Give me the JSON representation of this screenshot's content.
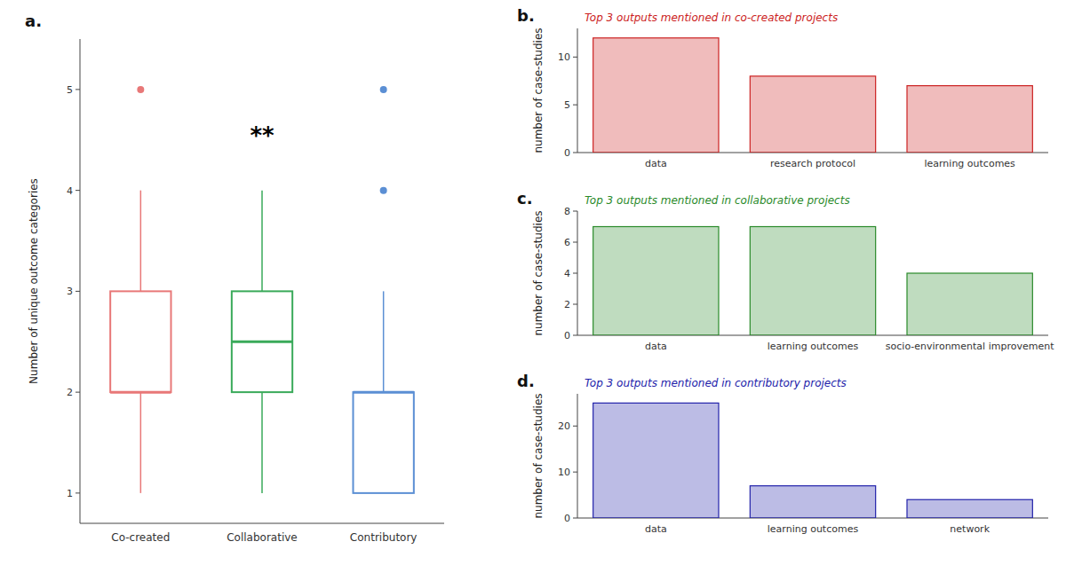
{
  "chart_data": [
    {
      "type": "box",
      "panel_label": "a.",
      "ylabel": "Number of unique outcome categories",
      "categories": [
        "Co-created",
        "Collaborative",
        "Contributory"
      ],
      "colors": [
        "#e87878",
        "#3aaa5a",
        "#5b8fd4"
      ],
      "values": [
        {
          "whisker_low": 1.0,
          "q1": 2.0,
          "median": 2.0,
          "q3": 3.0,
          "whisker_high": 4.0,
          "outliers": [
            5.0
          ]
        },
        {
          "whisker_low": 1.0,
          "q1": 2.0,
          "median": 2.5,
          "q3": 3.0,
          "whisker_high": 4.0,
          "outliers": []
        },
        {
          "whisker_low": 1.0,
          "q1": 1.0,
          "median": 2.0,
          "q3": 2.0,
          "whisker_high": 3.0,
          "outliers": [
            4.0,
            5.0
          ]
        }
      ],
      "ylim": [
        0.7,
        5.5
      ],
      "yticks": [
        1,
        2,
        3,
        4,
        5
      ],
      "annotations": [
        {
          "text": "**",
          "x": "Collaborative",
          "y": 4.55
        }
      ]
    },
    {
      "type": "bar",
      "panel_label": "b.",
      "title": "Top 3 outputs mentioned in co-created projects",
      "ylabel": "number of case-studies",
      "categories": [
        "data",
        "research protocol",
        "learning outcomes"
      ],
      "values": [
        12,
        8,
        7
      ],
      "color": "#cc2222",
      "ylim": [
        0,
        13
      ],
      "yticks": [
        0,
        5,
        10
      ]
    },
    {
      "type": "bar",
      "panel_label": "c.",
      "title": "Top 3 outputs mentioned in collaborative projects",
      "ylabel": "number of case-studies",
      "categories": [
        "data",
        "learning outcomes",
        "socio-environmental improvement"
      ],
      "values": [
        7,
        7,
        4
      ],
      "color": "#2a8a2a",
      "ylim": [
        0,
        8
      ],
      "yticks": [
        0,
        2,
        4,
        6,
        8
      ]
    },
    {
      "type": "bar",
      "panel_label": "d.",
      "title": "Top 3 outputs mentioned in contributory projects",
      "ylabel": "number of case-studies",
      "categories": [
        "data",
        "learning outcomes",
        "network"
      ],
      "values": [
        25,
        7,
        4
      ],
      "color": "#2222aa",
      "ylim": [
        0,
        27
      ],
      "yticks": [
        0,
        10,
        20
      ]
    }
  ]
}
